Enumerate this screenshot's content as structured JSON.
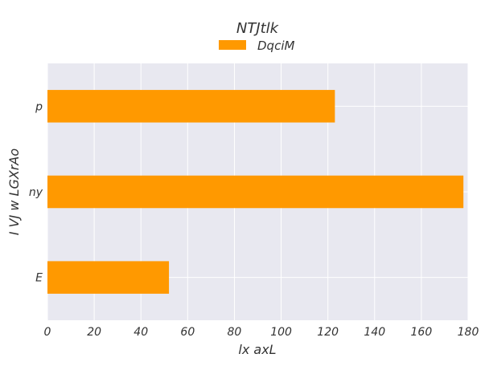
{
  "chart_data": {
    "type": "bar",
    "orientation": "horizontal",
    "title": "NTJtlk",
    "xlabel": "lx axL",
    "ylabel": "I VJ w LGXrAo",
    "categories": [
      "p",
      "ny",
      "E"
    ],
    "series": [
      {
        "name": "DqciM",
        "values": [
          123,
          178,
          52
        ],
        "color": "#ff9900"
      }
    ],
    "xlim": [
      0,
      180
    ],
    "xticks": [
      0,
      20,
      40,
      60,
      80,
      100,
      120,
      140,
      160,
      180
    ],
    "grid": true,
    "legend_position": "top-center",
    "plot_background": "#e8e8f0",
    "grid_color": "#ffffff"
  }
}
